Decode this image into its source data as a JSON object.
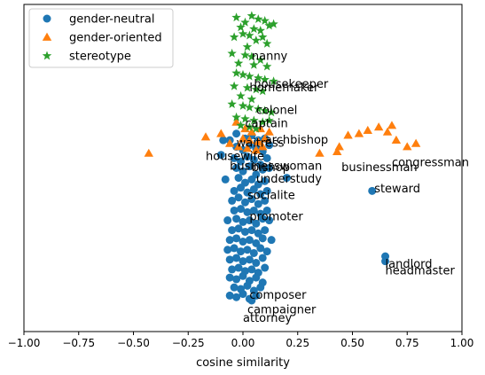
{
  "chart_data": {
    "type": "scatter",
    "title": "",
    "xlabel": "cosine similarity",
    "ylabel": "",
    "xlim": [
      -1.0,
      1.0
    ],
    "ylim": [
      0,
      1
    ],
    "x_ticks": [
      -1.0,
      -0.75,
      -0.5,
      -0.25,
      0.0,
      0.25,
      0.5,
      0.75,
      1.0
    ],
    "x_tick_labels": [
      "−1.00",
      "−0.75",
      "−0.50",
      "−0.25",
      "0.00",
      "0.25",
      "0.50",
      "0.75",
      "1.00"
    ],
    "y_ticks_shown": false,
    "grid": false,
    "legend_position": "top-left",
    "series": [
      {
        "name": "gender-neutral",
        "marker": "circle",
        "color": "#1f77b4",
        "points": [
          [
            -0.09,
            0.585
          ],
          [
            -0.1,
            0.54
          ],
          [
            -0.06,
            0.585
          ],
          [
            -0.03,
            0.605
          ],
          [
            0.01,
            0.59
          ],
          [
            0.04,
            0.6
          ],
          [
            0.07,
            0.585
          ],
          [
            0.1,
            0.59
          ],
          [
            -0.03,
            0.565
          ],
          [
            0.0,
            0.555
          ],
          [
            0.03,
            0.57
          ],
          [
            0.06,
            0.56
          ],
          [
            0.09,
            0.55
          ],
          [
            0.12,
            0.57
          ],
          [
            -0.04,
            0.53
          ],
          [
            -0.01,
            0.52
          ],
          [
            0.02,
            0.535
          ],
          [
            0.05,
            0.525
          ],
          [
            0.08,
            0.51
          ],
          [
            0.11,
            0.53
          ],
          [
            -0.03,
            0.5
          ],
          [
            0.0,
            0.49
          ],
          [
            0.03,
            0.505
          ],
          [
            0.06,
            0.48
          ],
          [
            0.09,
            0.495
          ],
          [
            0.12,
            0.5
          ],
          [
            0.2,
            0.47
          ],
          [
            -0.08,
            0.465
          ],
          [
            -0.02,
            0.47
          ],
          [
            0.01,
            0.455
          ],
          [
            0.04,
            0.465
          ],
          [
            0.07,
            0.45
          ],
          [
            0.1,
            0.46
          ],
          [
            -0.04,
            0.43
          ],
          [
            -0.01,
            0.44
          ],
          [
            0.02,
            0.425
          ],
          [
            0.05,
            0.435
          ],
          [
            0.08,
            0.42
          ],
          [
            0.11,
            0.43
          ],
          [
            -0.05,
            0.4
          ],
          [
            -0.02,
            0.41
          ],
          [
            0.01,
            0.395
          ],
          [
            0.04,
            0.405
          ],
          [
            0.07,
            0.39
          ],
          [
            0.1,
            0.4
          ],
          [
            -0.04,
            0.37
          ],
          [
            -0.01,
            0.375
          ],
          [
            0.02,
            0.365
          ],
          [
            0.05,
            0.37
          ],
          [
            0.08,
            0.36
          ],
          [
            0.11,
            0.37
          ],
          [
            -0.07,
            0.34
          ],
          [
            -0.03,
            0.345
          ],
          [
            0.0,
            0.335
          ],
          [
            0.03,
            0.34
          ],
          [
            0.06,
            0.33
          ],
          [
            0.09,
            0.345
          ],
          [
            0.12,
            0.34
          ],
          [
            -0.05,
            0.31
          ],
          [
            -0.02,
            0.315
          ],
          [
            0.01,
            0.305
          ],
          [
            0.04,
            0.31
          ],
          [
            0.07,
            0.3
          ],
          [
            0.1,
            0.31
          ],
          [
            -0.06,
            0.28
          ],
          [
            -0.03,
            0.285
          ],
          [
            0.0,
            0.275
          ],
          [
            0.03,
            0.28
          ],
          [
            0.06,
            0.27
          ],
          [
            0.09,
            0.285
          ],
          [
            0.13,
            0.28
          ],
          [
            -0.07,
            0.25
          ],
          [
            -0.04,
            0.255
          ],
          [
            -0.01,
            0.245
          ],
          [
            0.02,
            0.25
          ],
          [
            0.05,
            0.24
          ],
          [
            0.08,
            0.255
          ],
          [
            0.11,
            0.245
          ],
          [
            -0.06,
            0.22
          ],
          [
            -0.03,
            0.225
          ],
          [
            0.0,
            0.215
          ],
          [
            0.03,
            0.22
          ],
          [
            0.06,
            0.21
          ],
          [
            0.09,
            0.225
          ],
          [
            -0.05,
            0.19
          ],
          [
            -0.02,
            0.195
          ],
          [
            0.01,
            0.185
          ],
          [
            0.04,
            0.19
          ],
          [
            0.07,
            0.18
          ],
          [
            0.1,
            0.195
          ],
          [
            -0.06,
            0.165
          ],
          [
            -0.03,
            0.16
          ],
          [
            0.0,
            0.17
          ],
          [
            0.03,
            0.155
          ],
          [
            0.06,
            0.165
          ],
          [
            0.09,
            0.15
          ],
          [
            -0.04,
            0.135
          ],
          [
            -0.01,
            0.13
          ],
          [
            0.02,
            0.14
          ],
          [
            0.05,
            0.125
          ],
          [
            0.08,
            0.135
          ],
          [
            -0.06,
            0.11
          ],
          [
            -0.03,
            0.105
          ],
          [
            0.0,
            0.115
          ],
          [
            0.03,
            0.1
          ],
          [
            0.06,
            0.11
          ],
          [
            0.04,
            0.095
          ],
          [
            0.59,
            0.43
          ],
          [
            0.65,
            0.23
          ],
          [
            0.65,
            0.215
          ]
        ]
      },
      {
        "name": "gender-oriented",
        "marker": "triangle",
        "color": "#ff7f0e",
        "points": [
          [
            -0.43,
            0.545
          ],
          [
            -0.17,
            0.595
          ],
          [
            -0.1,
            0.605
          ],
          [
            -0.06,
            0.575
          ],
          [
            -0.03,
            0.64
          ],
          [
            0.01,
            0.62
          ],
          [
            0.04,
            0.61
          ],
          [
            0.08,
            0.62
          ],
          [
            0.12,
            0.61
          ],
          [
            0.0,
            0.59
          ],
          [
            0.03,
            0.585
          ],
          [
            0.07,
            0.58
          ],
          [
            0.1,
            0.59
          ],
          [
            -0.02,
            0.565
          ],
          [
            0.02,
            0.56
          ],
          [
            0.06,
            0.555
          ],
          [
            0.09,
            0.565
          ],
          [
            0.35,
            0.545
          ],
          [
            0.43,
            0.55
          ],
          [
            0.44,
            0.565
          ],
          [
            0.48,
            0.6
          ],
          [
            0.53,
            0.605
          ],
          [
            0.57,
            0.615
          ],
          [
            0.62,
            0.625
          ],
          [
            0.66,
            0.61
          ],
          [
            0.68,
            0.63
          ],
          [
            0.7,
            0.585
          ],
          [
            0.75,
            0.565
          ],
          [
            0.79,
            0.575
          ]
        ]
      },
      {
        "name": "stereotype",
        "marker": "star",
        "color": "#2ca02c",
        "points": [
          [
            0.04,
            0.965
          ],
          [
            0.07,
            0.955
          ],
          [
            -0.03,
            0.96
          ],
          [
            0.1,
            0.95
          ],
          [
            0.01,
            0.945
          ],
          [
            0.14,
            0.94
          ],
          [
            -0.01,
            0.93
          ],
          [
            0.05,
            0.925
          ],
          [
            0.12,
            0.935
          ],
          [
            0.08,
            0.92
          ],
          [
            0.0,
            0.91
          ],
          [
            0.03,
            0.905
          ],
          [
            0.09,
            0.9
          ],
          [
            -0.04,
            0.9
          ],
          [
            0.06,
            0.89
          ],
          [
            0.11,
            0.88
          ],
          [
            0.02,
            0.87
          ],
          [
            -0.05,
            0.85
          ],
          [
            0.01,
            0.845
          ],
          [
            0.04,
            0.84
          ],
          [
            0.08,
            0.83
          ],
          [
            -0.02,
            0.82
          ],
          [
            0.05,
            0.815
          ],
          [
            0.11,
            0.81
          ],
          [
            -0.03,
            0.79
          ],
          [
            0.0,
            0.785
          ],
          [
            0.03,
            0.78
          ],
          [
            0.07,
            0.775
          ],
          [
            0.1,
            0.77
          ],
          [
            0.14,
            0.765
          ],
          [
            -0.04,
            0.75
          ],
          [
            0.02,
            0.745
          ],
          [
            0.06,
            0.74
          ],
          [
            0.09,
            0.735
          ],
          [
            -0.01,
            0.72
          ],
          [
            0.04,
            0.71
          ],
          [
            -0.05,
            0.695
          ],
          [
            0.0,
            0.69
          ],
          [
            0.03,
            0.685
          ],
          [
            0.07,
            0.68
          ],
          [
            0.1,
            0.675
          ],
          [
            0.13,
            0.67
          ],
          [
            -0.03,
            0.655
          ],
          [
            0.01,
            0.65
          ],
          [
            0.05,
            0.645
          ],
          [
            0.09,
            0.64
          ],
          [
            0.12,
            0.645
          ],
          [
            -0.01,
            0.63
          ],
          [
            0.03,
            0.625
          ],
          [
            0.06,
            0.62
          ]
        ]
      }
    ],
    "annotations": [
      {
        "text": "nanny",
        "x": 0.04,
        "y": 0.83
      },
      {
        "text": "housekeeper",
        "x": 0.05,
        "y": 0.745
      },
      {
        "text": "homemaker",
        "x": 0.03,
        "y": 0.735
      },
      {
        "text": "colonel",
        "x": 0.06,
        "y": 0.665
      },
      {
        "text": "captain",
        "x": 0.01,
        "y": 0.625
      },
      {
        "text": "archbishop",
        "x": 0.1,
        "y": 0.575
      },
      {
        "text": "waitress",
        "x": -0.03,
        "y": 0.565
      },
      {
        "text": "housewife",
        "x": -0.17,
        "y": 0.525
      },
      {
        "text": "businesswoman",
        "x": -0.06,
        "y": 0.495
      },
      {
        "text": "bishop",
        "x": 0.04,
        "y": 0.49
      },
      {
        "text": "understudy",
        "x": 0.06,
        "y": 0.455
      },
      {
        "text": "businessman",
        "x": 0.45,
        "y": 0.49
      },
      {
        "text": "congressman",
        "x": 0.68,
        "y": 0.505
      },
      {
        "text": "steward",
        "x": 0.6,
        "y": 0.425
      },
      {
        "text": "socialite",
        "x": 0.02,
        "y": 0.405
      },
      {
        "text": "promoter",
        "x": 0.03,
        "y": 0.34
      },
      {
        "text": "landlord",
        "x": 0.65,
        "y": 0.195
      },
      {
        "text": "headmaster",
        "x": 0.65,
        "y": 0.175
      },
      {
        "text": "composer",
        "x": 0.03,
        "y": 0.1
      },
      {
        "text": "campaigner",
        "x": 0.02,
        "y": 0.055
      },
      {
        "text": "attorney",
        "x": 0.0,
        "y": 0.03
      }
    ]
  }
}
